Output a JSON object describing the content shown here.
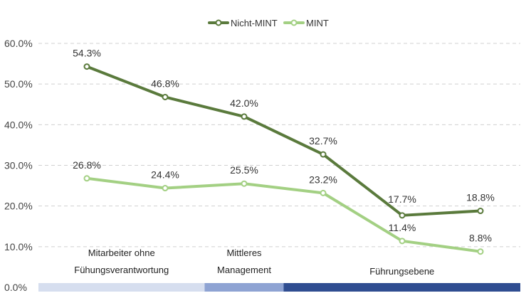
{
  "chart_data": {
    "type": "line",
    "title": "",
    "xlabel": "",
    "ylabel": "",
    "ylim": [
      0,
      60
    ],
    "y_ticks": [
      "0.0%",
      "10.0%",
      "20.0%",
      "30.0%",
      "40.0%",
      "50.0%",
      "60.0%"
    ],
    "grid": true,
    "legend_position": "top-center",
    "x": [
      1,
      2,
      3,
      4,
      5,
      6
    ],
    "series": [
      {
        "name": "Nicht-MINT",
        "color": "#5a7a3c",
        "values": [
          54.3,
          46.8,
          42.0,
          32.7,
          17.7,
          18.8
        ],
        "labels": [
          "54.3%",
          "46.8%",
          "42.0%",
          "32.7%",
          "17.7%",
          "18.8%"
        ]
      },
      {
        "name": "MINT",
        "color": "#a3d083",
        "values": [
          26.8,
          24.4,
          25.5,
          23.2,
          11.4,
          8.8
        ],
        "labels": [
          "26.8%",
          "24.4%",
          "25.5%",
          "23.2%",
          "11.4%",
          "8.8%"
        ]
      }
    ],
    "category_groups": [
      {
        "label_lines": [
          "Mitarbeiter ohne",
          "Fühungsverantwortung"
        ],
        "color": "#d6deef",
        "from": 0.5,
        "to": 2.5
      },
      {
        "label_lines": [
          "Mittleres",
          "Management"
        ],
        "color": "#8ea3d3",
        "from": 2.5,
        "to": 3.5
      },
      {
        "label_lines": [
          "Führungsebene"
        ],
        "color": "#2f4d91",
        "from": 3.5,
        "to": 6.5
      }
    ]
  }
}
